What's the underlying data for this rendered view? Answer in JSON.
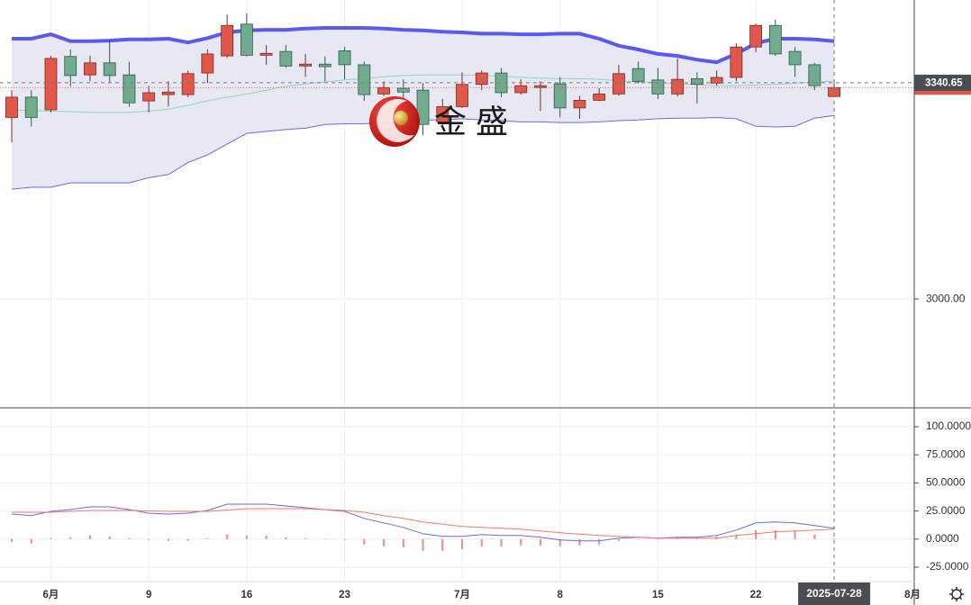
{
  "chart_data": [
    {
      "type": "candlestick",
      "categories": [
        null,
        null,
        "6月",
        null,
        null,
        null,
        null,
        "9",
        null,
        null,
        null,
        null,
        "16",
        null,
        null,
        null,
        null,
        "23",
        null,
        null,
        null,
        null,
        null,
        "7月",
        null,
        null,
        null,
        null,
        "8",
        null,
        null,
        null,
        null,
        "15",
        null,
        null,
        null,
        null,
        "22",
        null,
        null,
        null,
        null,
        null,
        null,
        null,
        "8月"
      ],
      "open": [
        3286,
        3318,
        3298,
        3382,
        3353,
        3372,
        3353,
        3312,
        3322,
        3322,
        3356,
        3383,
        3433,
        3384,
        3390,
        3367,
        3370,
        3391,
        3369,
        3323,
        3332,
        3329,
        3279,
        3303,
        3338,
        3356,
        3325,
        3333,
        3339,
        3301,
        3313,
        3323,
        3363,
        3345,
        3323,
        3347,
        3340,
        3349,
        3397,
        3431,
        3390,
        3369,
        3319,
        null,
        null,
        null,
        null
      ],
      "high": [
        3329,
        3329,
        3383,
        3393,
        3383,
        3407,
        3374,
        3336,
        3343,
        3360,
        3393,
        3448,
        3450,
        3400,
        3400,
        3386,
        3382,
        3397,
        3374,
        3343,
        3346,
        3340,
        3315,
        3357,
        3360,
        3364,
        3346,
        3343,
        3350,
        3320,
        3332,
        3369,
        3374,
        3364,
        3379,
        3357,
        3360,
        3403,
        3434,
        3440,
        3397,
        3372,
        3340,
        null,
        null,
        null,
        null
      ],
      "low": [
        3247,
        3272,
        3294,
        3335,
        3343,
        3340,
        3303,
        3294,
        3303,
        3318,
        3340,
        3380,
        3382,
        3369,
        3364,
        3350,
        3343,
        3346,
        3312,
        3320,
        3315,
        3258,
        3272,
        3301,
        3329,
        3318,
        3322,
        3296,
        3286,
        3284,
        3312,
        3320,
        3340,
        3315,
        3319,
        3308,
        3336,
        3343,
        3389,
        3383,
        3350,
        3329,
        3318,
        null,
        null,
        null,
        null
      ],
      "close": [
        3318,
        3286,
        3379,
        3352,
        3372,
        3352,
        3309,
        3325,
        3326,
        3355,
        3386,
        3431,
        3384,
        3387,
        3367,
        3370,
        3366,
        3369,
        3322,
        3333,
        3326,
        3275,
        3303,
        3338,
        3356,
        3325,
        3336,
        3336,
        3301,
        3313,
        3323,
        3355,
        3343,
        3323,
        3346,
        3338,
        3349,
        3397,
        3431,
        3386,
        3369,
        3336,
        3333,
        null,
        null,
        null,
        null
      ],
      "up_color": "#e0584a",
      "down_color": "#6fab8c",
      "bands": {
        "upper": [
          3410,
          3410,
          3417,
          3406,
          3406,
          3407,
          3409,
          3409,
          3410,
          3404,
          3411,
          3420,
          3423,
          3424,
          3424,
          3426,
          3427,
          3427,
          3427,
          3426,
          3424,
          3423,
          3421,
          3420,
          3418,
          3418,
          3417,
          3417,
          3418,
          3418,
          3410,
          3399,
          3393,
          3386,
          3383,
          3377,
          3373,
          3386,
          3403,
          3410,
          3410,
          3409,
          3406,
          null,
          null,
          null,
          null
        ],
        "middle": [
          3298,
          3297,
          3296,
          3295,
          3294,
          3294,
          3294,
          3296,
          3299,
          3305,
          3312,
          3318,
          3323,
          3329,
          3335,
          3339,
          3342,
          3345,
          3347,
          3350,
          3352,
          3353,
          3353,
          3353,
          3352,
          3351,
          3349,
          3348,
          3347,
          3347,
          3346,
          3344,
          3342,
          3341,
          3339,
          3338,
          3336,
          3336,
          3337,
          3338,
          3340,
          3342,
          3343,
          null,
          null,
          null,
          null
        ],
        "lower": [
          3173,
          3176,
          3176,
          3183,
          3183,
          3183,
          3183,
          3191,
          3196,
          3215,
          3227,
          3244,
          3261,
          3264,
          3267,
          3269,
          3275,
          3276,
          3276,
          3278,
          3279,
          3282,
          3282,
          3284,
          3282,
          3281,
          3279,
          3279,
          3278,
          3278,
          3279,
          3281,
          3282,
          3284,
          3285,
          3285,
          3286,
          3284,
          3272,
          3271,
          3272,
          3285,
          3289,
          null,
          null,
          null,
          null
        ],
        "upper_color": "#5a5aee",
        "middle_color": "#8ad6bf",
        "lower_color": "#6a6ae8",
        "fill": "#e6e6f3"
      },
      "ylim": [
        2830,
        3471
      ],
      "yticks": [
        {
          "value": 3000,
          "label": "3000.00"
        }
      ],
      "grid": true,
      "crosshair": {
        "value": 3340.65,
        "label": "3340.65",
        "date": "2025-07-28"
      },
      "watermark": "金 盛"
    },
    {
      "type": "line",
      "series": [
        {
          "color": "#6b6bdc",
          "values": [
            22.3,
            20.8,
            24.7,
            26.3,
            28.7,
            28.7,
            26.3,
            23.1,
            22.3,
            23.1,
            25.5,
            31.1,
            31.1,
            31.1,
            29.5,
            27.9,
            26.3,
            24.7,
            18.4,
            14.4,
            10.4,
            4.8,
            2.4,
            2.4,
            4,
            3.2,
            3.2,
            1.6,
            -0.8,
            -1.6,
            -1.6,
            0.8,
            1.6,
            0.8,
            1.6,
            1.6,
            3.2,
            8,
            14.4,
            15.2,
            14.4,
            12,
            9.6
          ]
        },
        {
          "color": "#f07a6a",
          "values": [
            23.9,
            23.9,
            23.9,
            24.7,
            25.5,
            25.5,
            25.5,
            25.1,
            24.7,
            24.7,
            24.7,
            25.9,
            27.1,
            27.1,
            27.1,
            27.1,
            26.3,
            25.5,
            23.9,
            20.8,
            18.4,
            15.2,
            13.2,
            11.2,
            10.4,
            9.6,
            8.8,
            7.2,
            5.6,
            4.4,
            3.2,
            2.4,
            1.6,
            0.8,
            0.8,
            0.8,
            0.8,
            3.2,
            4.8,
            6.4,
            7.2,
            8,
            8.8
          ]
        }
      ],
      "histogram": {
        "color": "#f08a80",
        "values": [
          -2.4,
          -4,
          0.8,
          1.6,
          3.2,
          2.4,
          0.8,
          -0.8,
          -1.6,
          -1.6,
          0.8,
          4,
          3.2,
          3.2,
          1.6,
          0.8,
          0,
          -0.8,
          -4.8,
          -6.4,
          -7.2,
          -10.4,
          -10.4,
          -8.8,
          -6.4,
          -6.4,
          -5.6,
          -5.6,
          -6.4,
          -5.6,
          -4.8,
          -1.6,
          0,
          0,
          0.8,
          0.8,
          2.4,
          4,
          8,
          8,
          7.2,
          4,
          0.8
        ]
      },
      "ylim": [
        -37,
        116
      ],
      "yticks": [
        {
          "value": 100,
          "label": "100.0000"
        },
        {
          "value": 75,
          "label": "75.0000"
        },
        {
          "value": 50,
          "label": "50.0000"
        },
        {
          "value": 25,
          "label": "25.0000"
        },
        {
          "value": 0,
          "label": "0.0000"
        },
        {
          "value": -25,
          "label": "-25.0000"
        }
      ],
      "grid": true
    }
  ]
}
